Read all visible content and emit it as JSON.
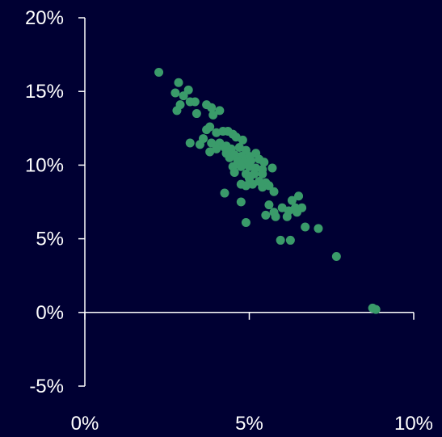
{
  "colors": {
    "background": "#000033",
    "axis": "#ffffff",
    "point": "#3a9b6a",
    "text": "#ffffff"
  },
  "chart_data": {
    "type": "scatter",
    "title": "",
    "xlabel": "",
    "ylabel": "",
    "xlim": [
      0,
      10
    ],
    "ylim": [
      -5,
      20
    ],
    "grid": false,
    "legend": "none",
    "x_ticks": [
      {
        "value": 0,
        "label": "0%"
      },
      {
        "value": 5,
        "label": "5%"
      },
      {
        "value": 10,
        "label": "10%"
      }
    ],
    "y_ticks": [
      {
        "value": -5,
        "label": "-5%"
      },
      {
        "value": 0,
        "label": "0%"
      },
      {
        "value": 5,
        "label": "5%"
      },
      {
        "value": 10,
        "label": "10%"
      },
      {
        "value": 15,
        "label": "15%"
      },
      {
        "value": 20,
        "label": "20%"
      }
    ],
    "series": [
      {
        "points": [
          [
            2.25,
            16.3
          ],
          [
            2.85,
            15.6
          ],
          [
            3.15,
            15.1
          ],
          [
            2.75,
            14.9
          ],
          [
            3.0,
            14.7
          ],
          [
            3.2,
            14.3
          ],
          [
            3.35,
            14.3
          ],
          [
            2.9,
            14.1
          ],
          [
            2.8,
            13.7
          ],
          [
            3.4,
            13.5
          ],
          [
            3.7,
            14.1
          ],
          [
            3.85,
            13.9
          ],
          [
            4.1,
            13.7
          ],
          [
            3.9,
            13.4
          ],
          [
            3.8,
            12.6
          ],
          [
            3.7,
            12.4
          ],
          [
            4.0,
            12.2
          ],
          [
            4.2,
            12.3
          ],
          [
            4.35,
            12.3
          ],
          [
            4.5,
            12.1
          ],
          [
            4.6,
            11.9
          ],
          [
            4.8,
            11.7
          ],
          [
            3.6,
            11.8
          ],
          [
            3.5,
            11.4
          ],
          [
            3.2,
            11.5
          ],
          [
            3.85,
            11.5
          ],
          [
            4.1,
            11.5
          ],
          [
            4.3,
            11.3
          ],
          [
            4.0,
            11.1
          ],
          [
            4.25,
            11.2
          ],
          [
            4.45,
            11.1
          ],
          [
            4.7,
            11.2
          ],
          [
            4.9,
            11.0
          ],
          [
            3.8,
            10.9
          ],
          [
            4.3,
            10.8
          ],
          [
            4.55,
            10.7
          ],
          [
            4.75,
            10.6
          ],
          [
            5.0,
            10.6
          ],
          [
            5.2,
            10.8
          ],
          [
            4.4,
            10.5
          ],
          [
            4.65,
            10.3
          ],
          [
            4.85,
            10.2
          ],
          [
            5.05,
            10.3
          ],
          [
            5.3,
            10.4
          ],
          [
            5.45,
            10.2
          ],
          [
            4.5,
            9.9
          ],
          [
            4.75,
            9.9
          ],
          [
            5.0,
            9.9
          ],
          [
            5.2,
            9.8
          ],
          [
            5.4,
            9.7
          ],
          [
            5.7,
            9.8
          ],
          [
            4.55,
            9.5
          ],
          [
            4.9,
            9.4
          ],
          [
            5.15,
            9.4
          ],
          [
            5.4,
            9.4
          ],
          [
            5.0,
            9.1
          ],
          [
            5.3,
            8.9
          ],
          [
            5.5,
            8.8
          ],
          [
            4.75,
            8.7
          ],
          [
            4.9,
            8.6
          ],
          [
            5.1,
            8.7
          ],
          [
            5.4,
            8.5
          ],
          [
            5.6,
            8.6
          ],
          [
            5.75,
            8.2
          ],
          [
            4.25,
            8.1
          ],
          [
            6.5,
            7.9
          ],
          [
            6.3,
            7.6
          ],
          [
            4.75,
            7.5
          ],
          [
            5.6,
            7.3
          ],
          [
            6.0,
            7.1
          ],
          [
            6.4,
            7.1
          ],
          [
            6.6,
            7.1
          ],
          [
            6.45,
            6.8
          ],
          [
            6.2,
            6.9
          ],
          [
            6.15,
            6.5
          ],
          [
            5.75,
            6.8
          ],
          [
            5.5,
            6.6
          ],
          [
            5.8,
            6.5
          ],
          [
            4.9,
            6.1
          ],
          [
            6.7,
            5.8
          ],
          [
            7.1,
            5.7
          ],
          [
            5.95,
            4.9
          ],
          [
            6.25,
            4.9
          ],
          [
            7.65,
            3.8
          ],
          [
            8.75,
            0.3
          ],
          [
            8.85,
            0.2
          ]
        ]
      }
    ]
  }
}
